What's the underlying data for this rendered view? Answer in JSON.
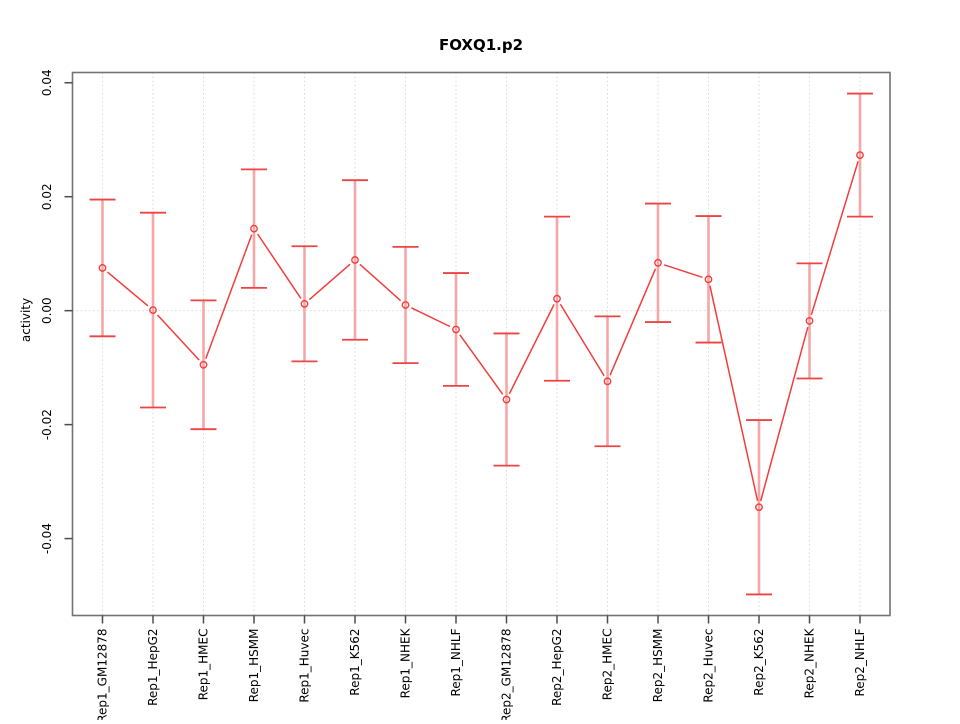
{
  "figure": {
    "background": "#ffffff"
  },
  "chart_data": {
    "type": "line",
    "title": "FOXQ1.p2",
    "ylabel": "activity",
    "xlabel": "",
    "legend_position": "none",
    "grid": {
      "vertical": "dotted line at each category",
      "horizontal": "dotted line at y=0 only"
    },
    "ylim": [
      -0.0535,
      0.0418
    ],
    "yticks": {
      "values": [
        0.04,
        0.02,
        0.0,
        -0.02,
        -0.04
      ],
      "labels": [
        "0.04",
        "0.02",
        "0.00",
        "-0.02",
        "-0.04"
      ]
    },
    "categories": [
      "Rep1_GM12878",
      "Rep1_HepG2",
      "Rep1_HMEC",
      "Rep1_HSMM",
      "Rep1_Huvec",
      "Rep1_K562",
      "Rep1_NHEK",
      "Rep1_NHLF",
      "Rep2_GM12878",
      "Rep2_HepG2",
      "Rep2_HMEC",
      "Rep2_HSMM",
      "Rep2_Huvec",
      "Rep2_K562",
      "Rep2_NHEK",
      "Rep2_NHLF"
    ],
    "series": [
      {
        "name": "activity",
        "marker": "open-circle",
        "values": [
          0.0075,
          0.0001,
          -0.0095,
          0.0144,
          0.0012,
          0.0089,
          0.001,
          -0.0033,
          -0.0156,
          0.0021,
          -0.0124,
          0.0084,
          0.0055,
          -0.0345,
          -0.0018,
          0.0273
        ],
        "error_low": [
          -0.0045,
          -0.017,
          -0.0208,
          0.004,
          -0.0089,
          -0.0051,
          -0.0092,
          -0.0132,
          -0.0272,
          -0.0123,
          -0.0238,
          -0.002,
          -0.0056,
          -0.0498,
          -0.0119,
          0.0165
        ],
        "error_high": [
          0.0195,
          0.0172,
          0.0018,
          0.0248,
          0.0113,
          0.0229,
          0.0112,
          0.0066,
          -0.004,
          0.0165,
          -0.001,
          0.0188,
          0.0166,
          -0.0192,
          0.0083,
          0.0381
        ]
      }
    ],
    "colors": {
      "line": "#f23d3d",
      "point": "#f23d3d",
      "errorbar_shaft": "#f5a6a6",
      "errorbar_cap": "#ee4343",
      "grid": "#d9d9d9",
      "axis_box": "#737373",
      "tick": "#4d4d4d",
      "text": "#000000"
    }
  }
}
